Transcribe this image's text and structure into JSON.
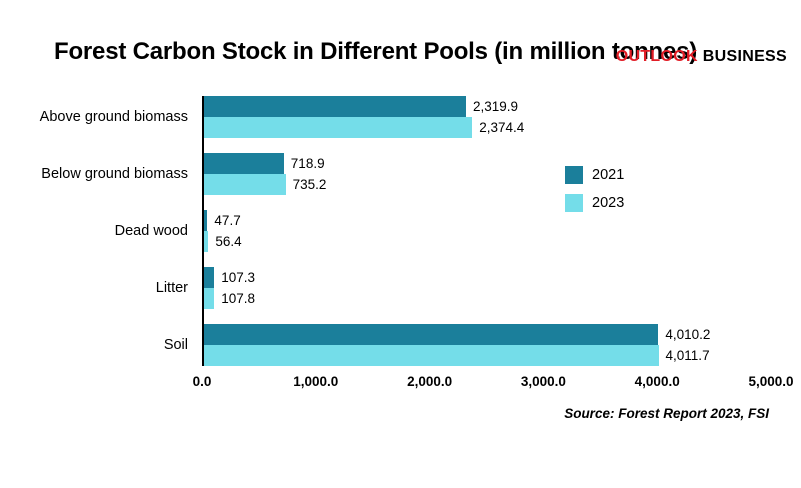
{
  "brand": {
    "primary": "OUTLOOK",
    "secondary": "BUSINESS",
    "primary_color": "#e11d26",
    "secondary_color": "#000000"
  },
  "title": "Forest Carbon Stock in Different Pools (in million tonnes)",
  "source_note": "Source: Forest Report 2023, FSI",
  "chart_data": {
    "type": "bar",
    "orientation": "horizontal",
    "title": "Forest Carbon Stock in Different Pools (in million tonnes)",
    "categories": [
      "Above ground biomass",
      "Below ground biomass",
      "Dead wood",
      "Litter",
      "Soil"
    ],
    "series": [
      {
        "name": "2021",
        "color": "#1b7f9b",
        "values": [
          2319.9,
          718.9,
          47.7,
          107.3,
          4010.2
        ],
        "labels": [
          "2,319.9",
          "718.9",
          "47.7",
          "107.3",
          "4,010.2"
        ]
      },
      {
        "name": "2023",
        "color": "#74dde9",
        "values": [
          2374.4,
          735.2,
          56.4,
          107.8,
          4011.7
        ],
        "labels": [
          "2,374.4",
          "735.2",
          "56.4",
          "107.8",
          "4,011.7"
        ]
      }
    ],
    "xlim": [
      0,
      5000
    ],
    "x_ticks": [
      0,
      1000,
      2000,
      3000,
      4000,
      5000
    ],
    "x_tick_labels": [
      "0.0",
      "1,000.0",
      "2,000.0",
      "3,000.0",
      "4,000.0",
      "5,000.0"
    ],
    "grid": false,
    "legend_position": "middle-right"
  }
}
